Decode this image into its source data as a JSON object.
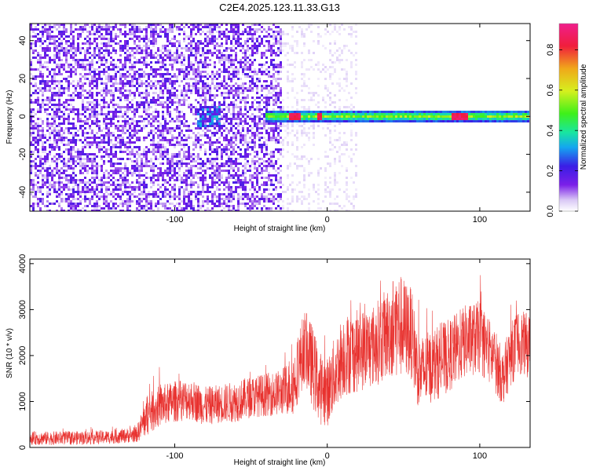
{
  "title": "C2E4.2025.123.11.33.G13",
  "colors": {
    "snr_line": "#e8322f",
    "colormap": [
      "#ffffff",
      "#d9c7f5",
      "#7b1fe8",
      "#3a1ee6",
      "#14a6f0",
      "#18e6a0",
      "#3ef01a",
      "#d6f01e",
      "#f0a81a",
      "#f01e3c",
      "#f01e8c"
    ]
  },
  "chart_data": [
    {
      "type": "heatmap",
      "xlabel": "Height of straight line (km)",
      "ylabel": "Frequency (Hz)",
      "xlim": [
        -195,
        133
      ],
      "ylim": [
        -50,
        49
      ],
      "xticks": [
        -100,
        0,
        100
      ],
      "yticks": [
        -40,
        -20,
        0,
        20,
        40
      ],
      "colorbar": {
        "label": "Normalized spectral amplitude",
        "range": [
          0.0,
          0.93
        ],
        "ticks": [
          0.0,
          0.2,
          0.4,
          0.6,
          0.8
        ]
      },
      "features": [
        {
          "kind": "broadband noise",
          "x_range": [
            -195,
            -30
          ],
          "y_range": [
            -50,
            49
          ],
          "amplitude": 0.1
        },
        {
          "kind": "weak noise",
          "x_range": [
            -30,
            20
          ],
          "y_range": [
            -50,
            49
          ],
          "amplitude": 0.03
        },
        {
          "kind": "narrowband signal",
          "x_range": [
            -40,
            133
          ],
          "center_hz": 0,
          "half_width_hz": 3,
          "amplitude": 0.45
        },
        {
          "kind": "peak",
          "x_range": [
            -25,
            -18
          ],
          "center_hz": 0,
          "amplitude": 0.9
        },
        {
          "kind": "peak",
          "x_range": [
            -7,
            -3
          ],
          "center_hz": 0,
          "amplitude": 0.9
        },
        {
          "kind": "peak",
          "x_range": [
            82,
            92
          ],
          "center_hz": 0,
          "amplitude": 0.9
        },
        {
          "kind": "patch",
          "x_range": [
            -85,
            -70
          ],
          "center_hz": 0,
          "amplitude": 0.25
        }
      ]
    },
    {
      "type": "line",
      "xlabel": "Height of straight line (km)",
      "ylabel": "SNR (10 * v/v)",
      "xlim": [
        -195,
        133
      ],
      "ylim": [
        0,
        4100
      ],
      "xticks": [
        -100,
        0,
        100
      ],
      "yticks": [
        0,
        1000,
        2000,
        3000,
        4000
      ],
      "series": [
        {
          "x": [
            -195,
            -180,
            -160,
            -140,
            -125,
            -118,
            -110,
            -100,
            -90,
            -80,
            -70,
            -60,
            -50,
            -40,
            -30,
            -22,
            -15,
            -10,
            -5,
            0,
            10,
            20,
            30,
            40,
            45,
            50,
            55,
            60,
            70,
            80,
            90,
            100,
            110,
            115,
            120,
            125,
            133
          ],
          "y": [
            200,
            200,
            210,
            230,
            280,
            700,
            900,
            1000,
            1050,
            900,
            950,
            1000,
            1100,
            1150,
            1200,
            1400,
            2200,
            1800,
            1300,
            1200,
            2000,
            2100,
            2200,
            2500,
            2700,
            2600,
            2500,
            1600,
            1800,
            2000,
            2300,
            2400,
            1900,
            1500,
            2000,
            2300,
            2200
          ],
          "spread": [
            150,
            150,
            150,
            150,
            170,
            450,
            450,
            450,
            450,
            420,
            420,
            450,
            450,
            470,
            500,
            700,
            800,
            900,
            800,
            750,
            900,
            900,
            900,
            1000,
            1200,
            1100,
            1000,
            800,
            800,
            800,
            800,
            800,
            700,
            600,
            700,
            700,
            700
          ]
        }
      ]
    }
  ]
}
